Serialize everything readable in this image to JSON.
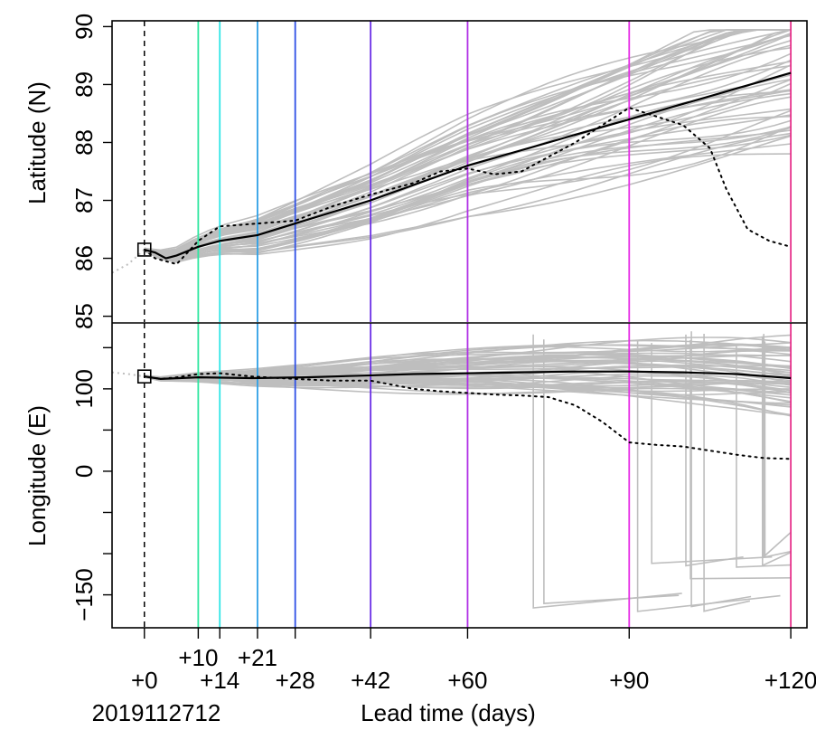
{
  "chart_data": {
    "type": "line",
    "xlabel": "Lead time (days)",
    "init_label": "2019112712",
    "x_ticks": [
      {
        "value": 0,
        "label": "+0",
        "row": 2
      },
      {
        "value": 10,
        "label": "+10",
        "row": 1
      },
      {
        "value": 14,
        "label": "+14",
        "row": 2
      },
      {
        "value": 21,
        "label": "+21",
        "row": 1
      },
      {
        "value": 28,
        "label": "+28",
        "row": 2
      },
      {
        "value": 42,
        "label": "+42",
        "row": 2
      },
      {
        "value": 60,
        "label": "+60",
        "row": 2
      },
      {
        "value": 90,
        "label": "+90",
        "row": 2
      },
      {
        "value": 120,
        "label": "+120",
        "row": 2
      }
    ],
    "xlim": [
      -6,
      123
    ],
    "lead_lines": [
      {
        "day": 10,
        "color": "#2fe6a0"
      },
      {
        "day": 14,
        "color": "#2fe6e6"
      },
      {
        "day": 21,
        "color": "#2fa0e6"
      },
      {
        "day": 28,
        "color": "#2f50e6"
      },
      {
        "day": 42,
        "color": "#6a2fe6"
      },
      {
        "day": 60,
        "color": "#b02fe6"
      },
      {
        "day": 90,
        "color": "#e62fe6"
      },
      {
        "day": 120,
        "color": "#e62f8a"
      }
    ],
    "colors": {
      "ensemble": "#bebebe",
      "mean": "#000000",
      "observed": "#000000",
      "history": "#bebebe"
    },
    "panels": [
      {
        "name": "latitude",
        "ylabel": "Latitude (N)",
        "ylim": [
          84.9,
          90.1
        ],
        "yticks": [
          85,
          86,
          87,
          88,
          89,
          90
        ],
        "start": {
          "x": 0,
          "y": 86.15
        },
        "mean": {
          "x": [
            0,
            2,
            4,
            6,
            10,
            14,
            21,
            28,
            42,
            60,
            75,
            90,
            105,
            120
          ],
          "y": [
            86.15,
            86.1,
            86.0,
            86.05,
            86.2,
            86.3,
            86.4,
            86.6,
            87.0,
            87.6,
            88.0,
            88.4,
            88.8,
            89.2
          ]
        },
        "observed": {
          "x": [
            0,
            2,
            4,
            6,
            8,
            10,
            14,
            21,
            28,
            35,
            42,
            50,
            55,
            60,
            65,
            70,
            75,
            80,
            85,
            90,
            95,
            100,
            105,
            108,
            112,
            116,
            120
          ],
          "y": [
            86.15,
            86.0,
            85.95,
            85.9,
            86.1,
            86.3,
            86.55,
            86.6,
            86.65,
            86.9,
            87.1,
            87.3,
            87.5,
            87.55,
            87.45,
            87.5,
            87.75,
            88.0,
            88.3,
            88.6,
            88.45,
            88.3,
            87.9,
            87.2,
            86.5,
            86.3,
            86.2
          ]
        },
        "history": {
          "x": [
            -6,
            -3,
            0
          ],
          "y": [
            85.75,
            85.9,
            86.15
          ]
        }
      },
      {
        "name": "longitude",
        "ylabel": "Longitude (E)",
        "ylim": [
          -190,
          180
        ],
        "yticks": [
          -150,
          -100,
          -50,
          0,
          50,
          100,
          150
        ],
        "ytick_labels": [
          -150,
          0,
          100
        ],
        "start": {
          "x": 0,
          "y": 115
        },
        "mean": {
          "x": [
            0,
            3,
            10,
            20,
            30,
            40,
            50,
            60,
            70,
            80,
            90,
            100,
            110,
            120
          ],
          "y": [
            115,
            112,
            114,
            113,
            114,
            116,
            118,
            119,
            120,
            121,
            121,
            120,
            118,
            113
          ]
        },
        "observed": {
          "x": [
            0,
            3,
            6,
            10,
            14,
            20,
            28,
            35,
            42,
            50,
            55,
            60,
            65,
            70,
            75,
            80,
            85,
            90,
            95,
            100,
            105,
            110,
            115,
            120
          ],
          "y": [
            115,
            112,
            114,
            118,
            119,
            115,
            112,
            110,
            110,
            100,
            97,
            95,
            93,
            92,
            90,
            80,
            60,
            35,
            32,
            30,
            25,
            20,
            16,
            15
          ]
        },
        "history": {
          "x": [
            -6,
            -3,
            0
          ],
          "y": [
            120,
            118,
            115
          ]
        }
      }
    ]
  }
}
